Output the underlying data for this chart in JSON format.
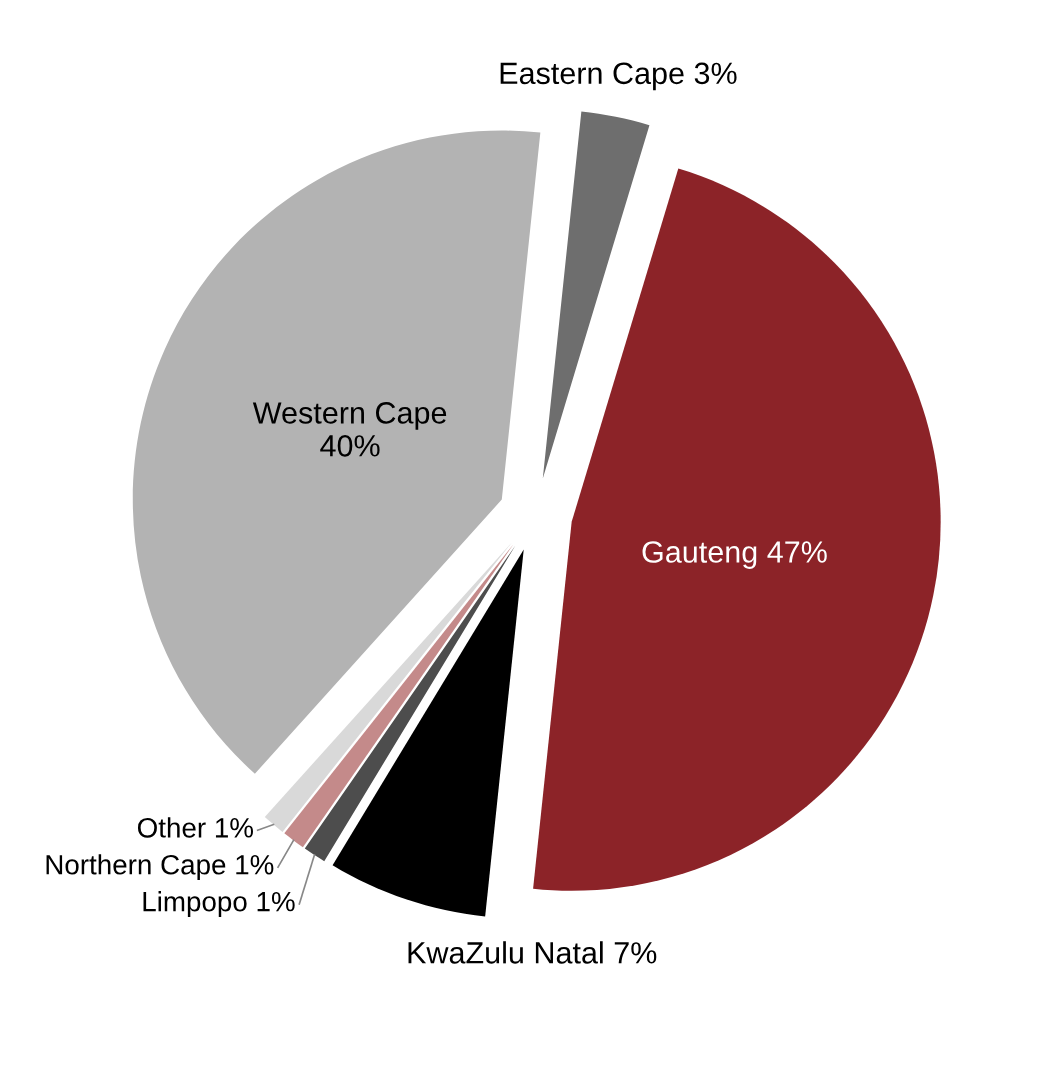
{
  "chart_data": {
    "type": "pie",
    "categories": [
      "Eastern Cape",
      "Gauteng",
      "KwaZulu Natal",
      "Limpopo",
      "Northern Cape",
      "Other",
      "Western Cape"
    ],
    "values": [
      3,
      47,
      7,
      1,
      1,
      1,
      40
    ],
    "value_labels": [
      "3%",
      "47%",
      "7%",
      "1%",
      "1%",
      "1%",
      "40%"
    ],
    "colors": [
      "#6e6e6e",
      "#8c2328",
      "#000000",
      "#4d4d4d",
      "#c48a8a",
      "#d9d9d9",
      "#b3b3b3"
    ]
  }
}
